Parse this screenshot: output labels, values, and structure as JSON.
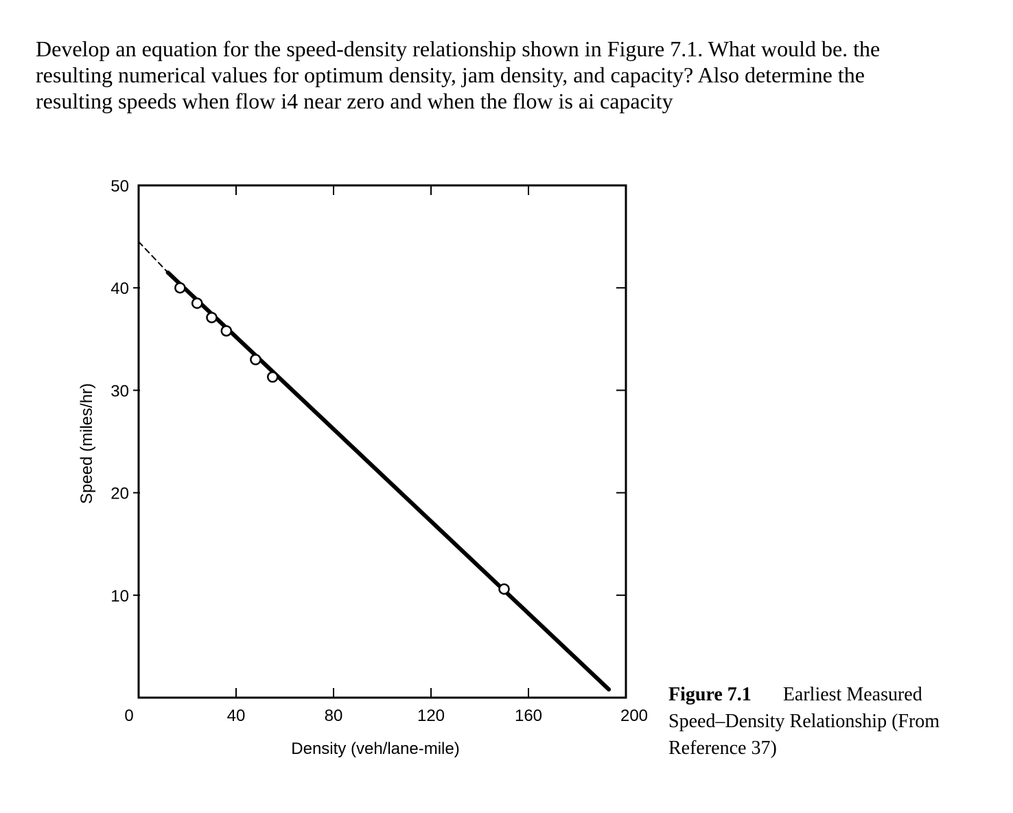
{
  "question": {
    "lines": [
      "Develop an equation for the speed-density relationship shown in Figure 7.1. What would be. the",
      "resulting numerical values for optimum density, jam density, and capacity? Also determine the",
      "resulting speeds when flow i4 near zero and when the flow is ai capacity"
    ]
  },
  "caption": {
    "figure_number": "Figure 7.1",
    "line1_rest": "Earliest Measured",
    "line2": "Speed–Density Relationship (From",
    "line3": "Reference 37)"
  },
  "chart_data": {
    "type": "scatter",
    "title": "",
    "xlabel": "Density (veh/lane-mile)",
    "ylabel": "Speed (miles/hr)",
    "xlim": [
      0,
      200
    ],
    "ylim": [
      0,
      50
    ],
    "x_ticks": [
      0,
      40,
      80,
      120,
      160,
      200
    ],
    "y_ticks": [
      10,
      20,
      30,
      40,
      50
    ],
    "grid": false,
    "points": [
      {
        "x": 17,
        "y": 40.0
      },
      {
        "x": 24,
        "y": 38.5
      },
      {
        "x": 30,
        "y": 37.1
      },
      {
        "x": 36,
        "y": 35.8
      },
      {
        "x": 48,
        "y": 33.0
      },
      {
        "x": 55,
        "y": 31.3
      },
      {
        "x": 150,
        "y": 10.6
      }
    ],
    "fit_line": {
      "segments": [
        {
          "style": "dashed",
          "from": {
            "x": 0,
            "y": 44.5
          },
          "to": {
            "x": 12,
            "y": 41.5
          }
        },
        {
          "style": "solid",
          "from": {
            "x": 12,
            "y": 41.5
          },
          "to": {
            "x": 193,
            "y": 0.8
          }
        }
      ]
    }
  }
}
